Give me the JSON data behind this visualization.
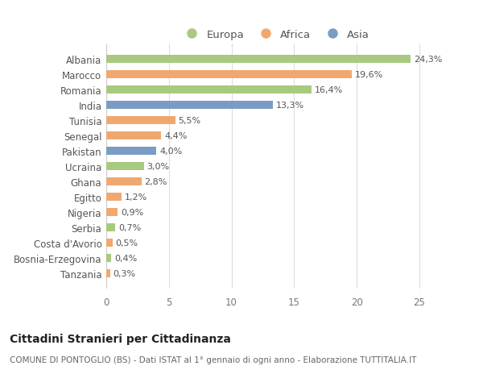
{
  "countries": [
    "Albania",
    "Marocco",
    "Romania",
    "India",
    "Tunisia",
    "Senegal",
    "Pakistan",
    "Ucraina",
    "Ghana",
    "Egitto",
    "Nigeria",
    "Serbia",
    "Costa d'Avorio",
    "Bosnia-Erzegovina",
    "Tanzania"
  ],
  "values": [
    24.3,
    19.6,
    16.4,
    13.3,
    5.5,
    4.4,
    4.0,
    3.0,
    2.8,
    1.2,
    0.9,
    0.7,
    0.5,
    0.4,
    0.3
  ],
  "labels": [
    "24,3%",
    "19,6%",
    "16,4%",
    "13,3%",
    "5,5%",
    "4,4%",
    "4,0%",
    "3,0%",
    "2,8%",
    "1,2%",
    "0,9%",
    "0,7%",
    "0,5%",
    "0,4%",
    "0,3%"
  ],
  "continents": [
    "Europa",
    "Africa",
    "Europa",
    "Asia",
    "Africa",
    "Africa",
    "Asia",
    "Europa",
    "Africa",
    "Africa",
    "Africa",
    "Europa",
    "Africa",
    "Europa",
    "Africa"
  ],
  "colors": {
    "Europa": "#a8c97f",
    "Africa": "#f0a870",
    "Asia": "#7a9cc4"
  },
  "legend_order": [
    "Europa",
    "Africa",
    "Asia"
  ],
  "title": "Cittadini Stranieri per Cittadinanza",
  "subtitle": "COMUNE DI PONTOGLIO (BS) - Dati ISTAT al 1° gennaio di ogni anno - Elaborazione TUTTITALIA.IT",
  "xlim": [
    0,
    27
  ],
  "xticks": [
    0,
    5,
    10,
    15,
    20,
    25
  ],
  "background_color": "#ffffff",
  "bar_height": 0.55,
  "title_fontsize": 10,
  "subtitle_fontsize": 7.5,
  "label_fontsize": 8,
  "tick_fontsize": 8.5,
  "legend_fontsize": 9.5
}
